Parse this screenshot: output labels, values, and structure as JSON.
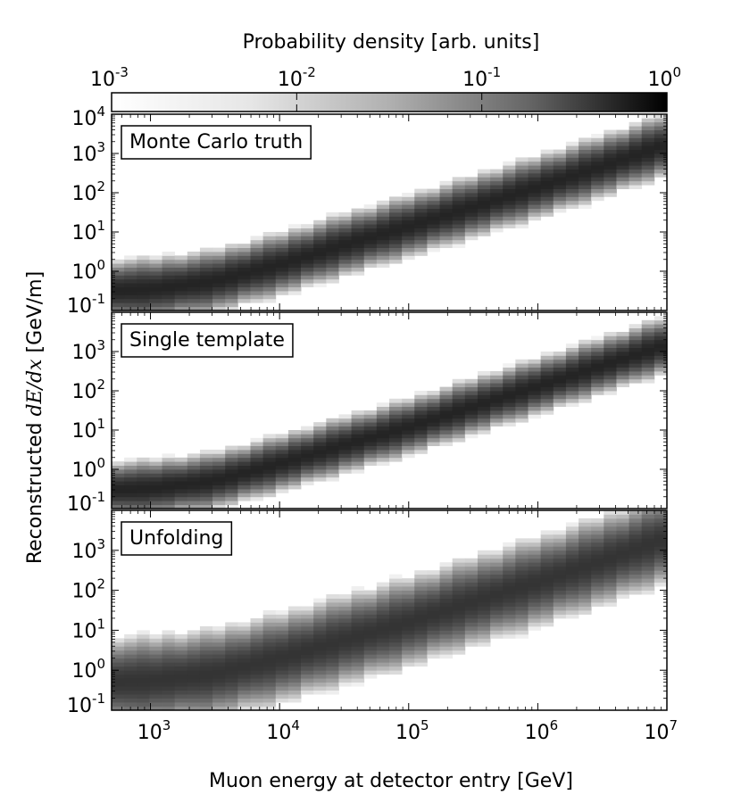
{
  "figure": {
    "colorbar_label": "Probability density [arb. units]",
    "y_label_prefix": "Reconstructed ",
    "y_label_math": "dE/dx",
    "y_label_suffix": " [GeV/m]",
    "x_label": "Muon energy at detector entry [GeV]"
  },
  "colorbar": {
    "scale": "log",
    "range": [
      0.001,
      1
    ],
    "colormap": "greys",
    "ticks": [
      {
        "base": "10",
        "exp": "-3"
      },
      {
        "base": "10",
        "exp": "-2"
      },
      {
        "base": "10",
        "exp": "-1"
      },
      {
        "base": "10",
        "exp": "0"
      }
    ]
  },
  "x_ticks": [
    {
      "base": "10",
      "exp": "3"
    },
    {
      "base": "10",
      "exp": "4"
    },
    {
      "base": "10",
      "exp": "5"
    },
    {
      "base": "10",
      "exp": "6"
    },
    {
      "base": "10",
      "exp": "7"
    }
  ],
  "y_ticks": [
    {
      "base": "10",
      "exp": "-1"
    },
    {
      "base": "10",
      "exp": "0"
    },
    {
      "base": "10",
      "exp": "1"
    },
    {
      "base": "10",
      "exp": "2"
    },
    {
      "base": "10",
      "exp": "3"
    },
    {
      "base": "10",
      "exp": "4"
    }
  ],
  "colors": {
    "band_peak": "#2a2a2a",
    "background": "#ffffff",
    "frame": "#000000"
  },
  "chart_data": [
    {
      "type": "heatmap",
      "title": "Monte Carlo truth",
      "xlabel": "Muon energy at detector entry [GeV]",
      "ylabel": "Reconstructed dE/dx [GeV/m]",
      "x_scale": "log",
      "y_scale": "log",
      "xlim": [
        500,
        10000000
      ],
      "ylim": [
        0.1,
        10000
      ],
      "ridge_x": [
        500,
        1000,
        3000,
        10000,
        30000,
        100000,
        300000,
        1000000,
        3000000,
        10000000
      ],
      "ridge_y": [
        0.32,
        0.35,
        0.55,
        1.5,
        4.5,
        14,
        42,
        140,
        450,
        1700
      ],
      "ridge_width_decades": 0.22,
      "peak_density": 1
    },
    {
      "type": "heatmap",
      "title": "Single template",
      "xlabel": "Muon energy at detector entry [GeV]",
      "ylabel": "Reconstructed dE/dx [GeV/m]",
      "x_scale": "log",
      "y_scale": "log",
      "xlim": [
        500,
        10000000
      ],
      "ylim": [
        0.1,
        10000
      ],
      "ridge_x": [
        500,
        1000,
        3000,
        10000,
        30000,
        100000,
        300000,
        1000000,
        3000000,
        10000000
      ],
      "ridge_y": [
        0.3,
        0.33,
        0.5,
        1.4,
        4,
        12,
        38,
        130,
        420,
        1500
      ],
      "ridge_width_decades": 0.2,
      "peak_density": 1
    },
    {
      "type": "heatmap",
      "title": "Unfolding",
      "xlabel": "Muon energy at detector entry [GeV]",
      "ylabel": "Reconstructed dE/dx [GeV/m]",
      "x_scale": "log",
      "y_scale": "log",
      "xlim": [
        500,
        10000000
      ],
      "ylim": [
        0.1,
        10000
      ],
      "ridge_x": [
        500,
        1000,
        3000,
        10000,
        30000,
        100000,
        300000,
        1000000,
        3000000,
        10000000
      ],
      "ridge_y": [
        0.5,
        0.55,
        0.8,
        2,
        5.5,
        16,
        50,
        160,
        520,
        2000
      ],
      "ridge_width_decades": 0.32,
      "peak_density": 0.6
    }
  ]
}
